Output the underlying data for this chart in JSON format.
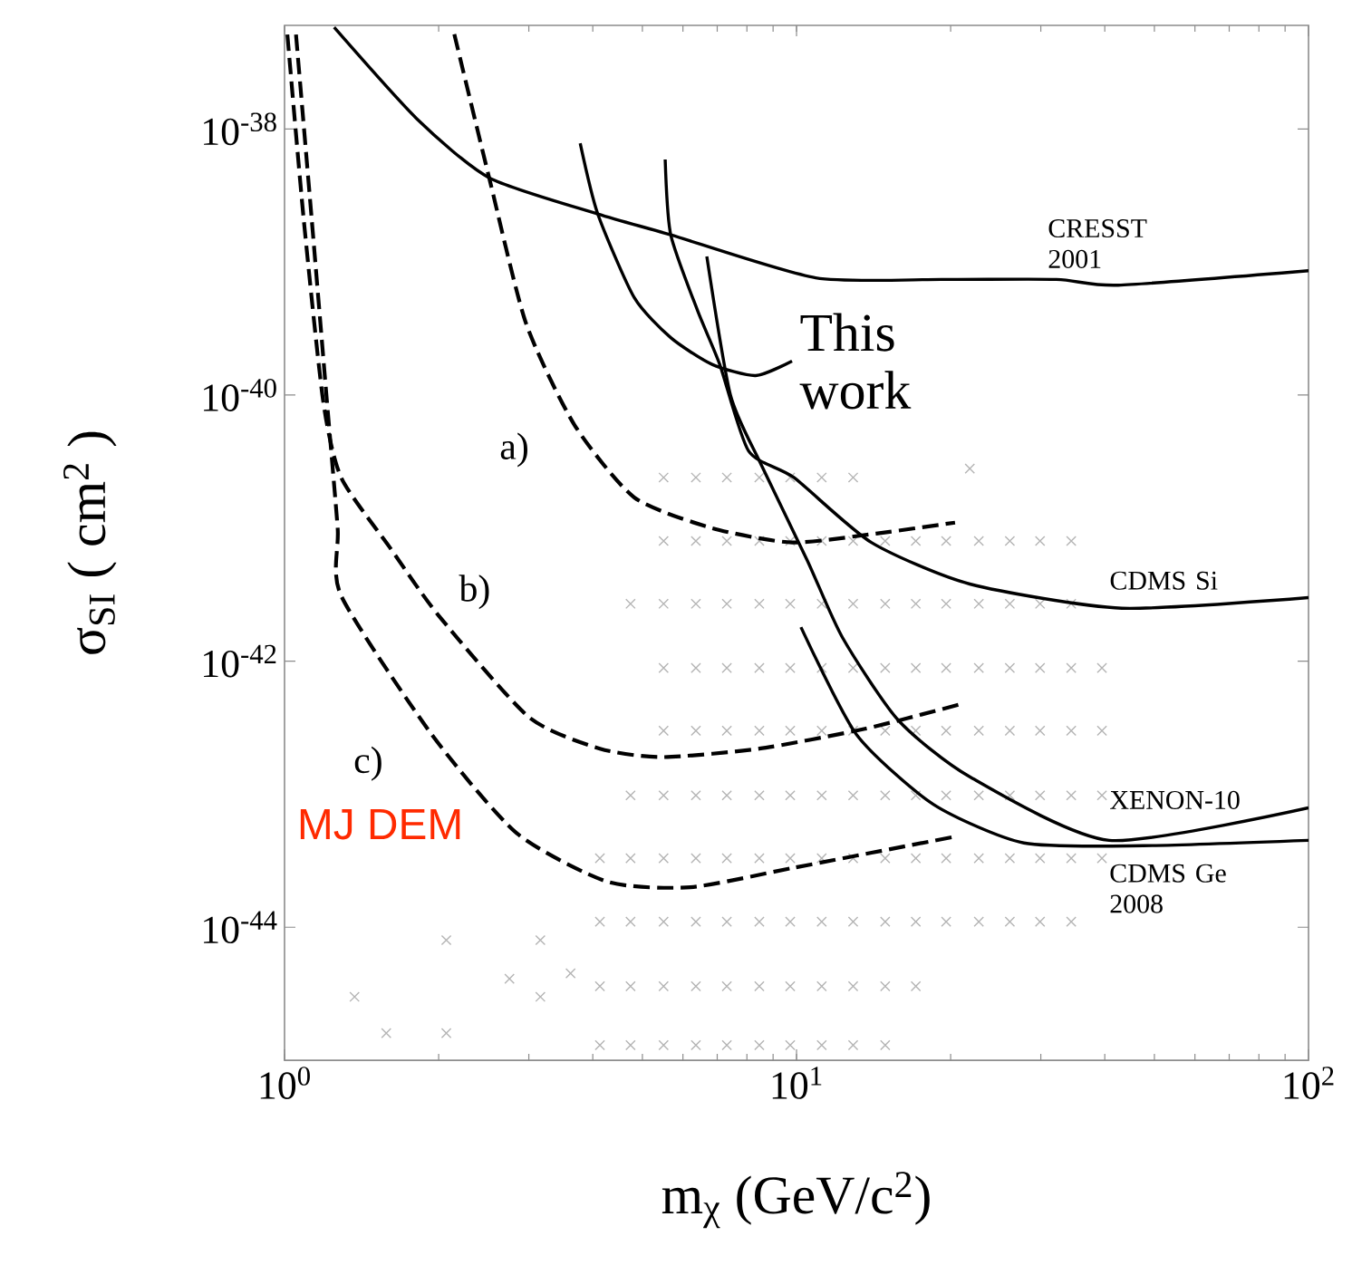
{
  "chart_data": {
    "type": "line",
    "xlabel": "m$_{χ}$  (GeV/c$^{2}$)",
    "ylabel": "σ$_{SI}$ ( cm$^{2}$ )",
    "log": "xy",
    "xlim": [
      1,
      100
    ],
    "ylim": [
      1e-45,
      6e-38
    ],
    "xticks": [
      {
        "value": 1,
        "label": "10$^{0}$"
      },
      {
        "value": 10,
        "label": "10$^{1}$"
      },
      {
        "value": 100,
        "label": "10$^{2}$"
      }
    ],
    "yticks": [
      {
        "value": 1e-44,
        "label": "10$^{-44}$"
      },
      {
        "value": 1e-42,
        "label": "10$^{-42}$"
      },
      {
        "value": 1e-40,
        "label": "10$^{-40}$"
      },
      {
        "value": 1e-38,
        "label": "10$^{-38}$"
      }
    ],
    "annotations": [
      "MJ DEM"
    ],
    "series": [
      {
        "type": "scatter",
        "marker": "cross",
        "color": "#b4b4b4",
        "x": [
          1.37,
          1.58,
          2.07,
          2.07,
          2.75,
          3.16,
          3.16,
          3.62,
          4.13,
          4.13,
          4.13,
          4.13,
          4.74,
          4.74,
          4.74,
          4.74,
          4.74,
          4.74,
          5.5,
          5.5,
          5.5,
          5.5,
          5.5,
          5.5,
          5.5,
          5.5,
          5.5,
          5.5,
          6.36,
          6.36,
          6.36,
          6.36,
          6.36,
          6.36,
          6.36,
          6.36,
          6.36,
          6.36,
          7.31,
          7.31,
          7.31,
          7.31,
          7.31,
          7.31,
          7.31,
          7.31,
          7.31,
          7.31,
          8.46,
          8.46,
          8.46,
          8.46,
          8.46,
          8.46,
          8.46,
          8.46,
          8.46,
          8.46,
          9.72,
          9.72,
          9.72,
          9.72,
          9.72,
          9.72,
          9.72,
          9.72,
          9.72,
          9.72,
          11.2,
          11.2,
          11.2,
          11.2,
          11.2,
          11.2,
          11.2,
          11.2,
          11.2,
          11.2,
          12.9,
          12.9,
          12.9,
          12.9,
          12.9,
          12.9,
          12.9,
          12.9,
          12.9,
          12.9,
          14.9,
          14.9,
          14.9,
          14.9,
          14.9,
          14.9,
          14.9,
          14.9,
          14.9,
          17.1,
          17.1,
          17.1,
          17.1,
          17.1,
          17.1,
          17.1,
          17.1,
          19.6,
          19.6,
          19.6,
          19.6,
          19.6,
          19.6,
          19.6,
          21.8,
          22.7,
          22.7,
          22.7,
          22.7,
          22.7,
          22.7,
          22.7,
          26.1,
          26.1,
          26.1,
          26.1,
          26.1,
          26.1,
          26.1,
          29.9,
          29.9,
          29.9,
          29.9,
          29.9,
          29.9,
          29.9,
          34.4,
          34.4,
          34.4,
          34.4,
          34.4,
          34.4,
          34.4,
          39.5,
          39.5,
          39.5,
          39.5
        ],
        "values": [
          3e-45,
          1.6e-45,
          8e-45,
          1.6e-45,
          4.1e-45,
          8e-45,
          3e-45,
          4.5e-45,
          3.3e-44,
          1.1e-44,
          3.6e-45,
          1.3e-45,
          2.7e-42,
          9.8e-44,
          3.3e-44,
          1.1e-44,
          3.6e-45,
          1.3e-45,
          2.4e-41,
          8e-42,
          2.7e-42,
          8.9e-43,
          3e-43,
          9.8e-44,
          3.3e-44,
          1.1e-44,
          3.6e-45,
          1.3e-45,
          2.4e-41,
          8e-42,
          2.7e-42,
          8.9e-43,
          3e-43,
          9.8e-44,
          3.3e-44,
          1.1e-44,
          3.6e-45,
          1.3e-45,
          2.4e-41,
          8e-42,
          2.7e-42,
          8.9e-43,
          3e-43,
          9.8e-44,
          3.3e-44,
          1.1e-44,
          3.6e-45,
          1.3e-45,
          2.4e-41,
          8e-42,
          2.7e-42,
          8.9e-43,
          3e-43,
          9.8e-44,
          3.3e-44,
          1.1e-44,
          3.6e-45,
          1.3e-45,
          2.4e-41,
          8e-42,
          2.7e-42,
          8.9e-43,
          3e-43,
          9.8e-44,
          3.3e-44,
          1.1e-44,
          3.6e-45,
          1.3e-45,
          2.4e-41,
          8e-42,
          2.7e-42,
          8.9e-43,
          3e-43,
          9.8e-44,
          3.3e-44,
          1.1e-44,
          3.6e-45,
          1.3e-45,
          2.4e-41,
          8e-42,
          2.7e-42,
          8.9e-43,
          3e-43,
          9.8e-44,
          3.3e-44,
          1.1e-44,
          3.6e-45,
          1.3e-45,
          8e-42,
          2.7e-42,
          8.9e-43,
          3e-43,
          9.8e-44,
          3.3e-44,
          1.1e-44,
          3.6e-45,
          1.3e-45,
          8e-42,
          2.7e-42,
          8.9e-43,
          3e-43,
          9.8e-44,
          3.3e-44,
          1.1e-44,
          3.6e-45,
          8e-42,
          2.7e-42,
          8.9e-43,
          3e-43,
          9.8e-44,
          3.3e-44,
          1.1e-44,
          2.8e-41,
          8e-42,
          2.7e-42,
          8.9e-43,
          3e-43,
          9.8e-44,
          3.3e-44,
          1.1e-44,
          8e-42,
          2.7e-42,
          8.9e-43,
          3e-43,
          9.8e-44,
          3.3e-44,
          1.1e-44,
          8e-42,
          2.7e-42,
          8.9e-43,
          3e-43,
          9.8e-44,
          3.3e-44,
          1.1e-44,
          8e-42,
          2.7e-42,
          8.9e-43,
          3e-43,
          9.8e-44,
          3.3e-44,
          1.1e-44,
          8.9e-43,
          3e-43,
          9.8e-44,
          3.3e-44
        ]
      },
      {
        "name": "CRESST 2001",
        "color": "#000000",
        "x": [
          1.25,
          1.81,
          2.51,
          4.09,
          5.68,
          10.9,
          19.3,
          32.2,
          42.5,
          100
        ],
        "values": [
          5.8e-38,
          1.2e-38,
          4.3e-39,
          2.3e-39,
          1.6e-39,
          7.6e-40,
          7.4e-40,
          7.4e-40,
          6.7e-40,
          8.6e-40
        ]
      },
      {
        "name": "This work",
        "color": "#000000",
        "x": [
          3.78,
          4.09,
          4.82,
          5.68,
          6.84,
          8.32,
          9.8
        ],
        "values": [
          7.8e-39,
          2.3e-39,
          5.4e-40,
          2.7e-40,
          1.7e-40,
          1.4e-40,
          1.8e-40
        ]
      },
      {
        "name": "CDMS Si",
        "color": "#000000",
        "x": [
          5.54,
          5.68,
          6.41,
          7.08,
          8.06,
          9.88,
          14.0,
          21.8,
          43.2,
          100
        ],
        "values": [
          5.9e-39,
          1.6e-39,
          4.3e-40,
          1.7e-40,
          3.8e-41,
          2.4e-41,
          7.8e-42,
          3.8e-42,
          2.5e-42,
          3e-42
        ]
      },
      {
        "name": "XENON-10",
        "color": "#000000",
        "x": [
          6.68,
          7.43,
          8.53,
          10.5,
          12.3,
          15.8,
          21.8,
          40.8,
          100
        ],
        "values": [
          1.1e-39,
          1e-40,
          3e-41,
          5.7e-42,
          1.5e-42,
          3.6e-43,
          1.35e-43,
          4.5e-44,
          7.9e-44
        ]
      },
      {
        "name": "CDMS Ge 2008",
        "color": "#000000",
        "x": [
          10.2,
          13.1,
          18.5,
          27.8,
          47.6,
          100
        ],
        "values": [
          1.8e-42,
          2.8e-43,
          8.4e-44,
          4.3e-44,
          4.1e-44,
          4.5e-44
        ]
      },
      {
        "name": "a)",
        "color": "#000000",
        "line_style": "dashed",
        "x": [
          2.13,
          2.51,
          2.96,
          3.68,
          4.82,
          6.84,
          9.8,
          14.3,
          20.4
        ],
        "values": [
          5.8e-38,
          4.3e-39,
          3.5e-40,
          6e-41,
          1.7e-41,
          1e-41,
          7.8e-42,
          9.1e-42,
          1.1e-41
        ]
      },
      {
        "name": "b)",
        "color": "#000000",
        "line_style": "dashed",
        "x": [
          1.01,
          1.09,
          1.19,
          1.29,
          1.6,
          2.0,
          3.0,
          4.13,
          5.45,
          8.46,
          13.6,
          20.7
        ],
        "values": [
          5.8e-38,
          2.1e-39,
          9e-41,
          2.4e-41,
          7.3e-42,
          2.2e-42,
          3.8e-43,
          2.2e-43,
          1.9e-43,
          2.2e-43,
          3.1e-43,
          4.7e-43
        ]
      },
      {
        "name": "c)",
        "color": "#000000",
        "line_style": "dashed",
        "x": [
          1.05,
          1.13,
          1.21,
          1.27,
          1.29,
          1.94,
          2.84,
          4.27,
          6.21,
          9.88,
          20.4
        ],
        "values": [
          5.8e-38,
          2.1e-39,
          9e-41,
          1e-41,
          3.1e-42,
          2.8e-43,
          5.1e-44,
          2.2e-44,
          2e-44,
          2.8e-44,
          4.8e-44
        ]
      }
    ]
  }
}
